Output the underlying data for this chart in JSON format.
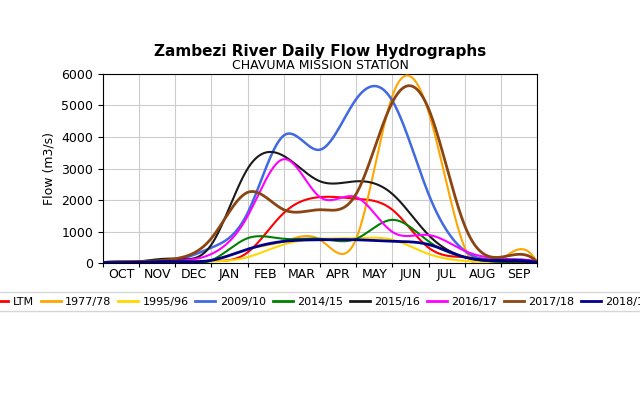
{
  "title": "Zambezi River Daily Flow Hydrographs",
  "subtitle": "CHAVUMA MISSION STATION",
  "ylabel": "Flow (m3/s)",
  "ylim": [
    0,
    6000
  ],
  "yticks": [
    0,
    1000,
    2000,
    3000,
    4000,
    5000,
    6000
  ],
  "months": [
    "OCT",
    "NOV",
    "DEC",
    "JAN",
    "FEB",
    "MAR",
    "APR",
    "MAY",
    "JUN",
    "JUL",
    "AUG",
    "SEP"
  ],
  "background_color": "#FFFFFF",
  "grid_color": "#CCCCCC",
  "title_fontsize": 11,
  "subtitle_fontsize": 9,
  "axis_fontsize": 9,
  "tick_fontsize": 9,
  "legend_fontsize": 8,
  "series": {
    "LTM": {
      "color": "#FF0000",
      "linewidth": 1.5,
      "x": [
        0,
        1,
        2,
        3,
        4,
        5,
        6,
        7,
        8,
        9,
        10,
        11,
        12
      ],
      "y": [
        30,
        30,
        40,
        80,
        350,
        1600,
        2100,
        2050,
        1700,
        500,
        200,
        80,
        30
      ]
    },
    "1977/78": {
      "color": "#FFA500",
      "linewidth": 1.5,
      "x": [
        0,
        1,
        2,
        3,
        4,
        5,
        6,
        7,
        8,
        9,
        10,
        11,
        12
      ],
      "y": [
        30,
        30,
        50,
        100,
        450,
        700,
        750,
        780,
        5300,
        4800,
        500,
        100,
        30
      ]
    },
    "1995/96": {
      "color": "#FFD700",
      "linewidth": 1.5,
      "x": [
        0,
        1,
        2,
        3,
        4,
        5,
        6,
        7,
        8,
        9,
        10,
        11,
        12
      ],
      "y": [
        20,
        20,
        30,
        60,
        200,
        600,
        780,
        800,
        750,
        300,
        80,
        30,
        10
      ]
    },
    "2009/10": {
      "color": "#4169E1",
      "linewidth": 1.8,
      "x": [
        0,
        1,
        2,
        3,
        4,
        5,
        6,
        7,
        8,
        9,
        10,
        11,
        12
      ],
      "y": [
        30,
        50,
        100,
        500,
        1600,
        4050,
        3600,
        5200,
        5150,
        2200,
        400,
        100,
        20
      ]
    },
    "2014/15": {
      "color": "#008000",
      "linewidth": 1.5,
      "x": [
        0,
        1,
        2,
        3,
        4,
        5,
        6,
        7,
        8,
        9,
        10,
        11,
        12
      ],
      "y": [
        20,
        30,
        50,
        100,
        800,
        780,
        780,
        780,
        1380,
        700,
        200,
        50,
        20
      ]
    },
    "2015/16": {
      "color": "#1a1a1a",
      "linewidth": 1.5,
      "x": [
        0,
        1,
        2,
        3,
        4,
        5,
        6,
        7,
        8,
        9,
        10,
        11,
        12
      ],
      "y": [
        30,
        60,
        150,
        600,
        3000,
        3400,
        2600,
        2600,
        2200,
        900,
        200,
        60,
        20
      ]
    },
    "2016/17": {
      "color": "#FF00FF",
      "linewidth": 1.5,
      "x": [
        0,
        1,
        2,
        3,
        4,
        5,
        6,
        7,
        8,
        9,
        10,
        11,
        12
      ],
      "y": [
        20,
        30,
        80,
        300,
        1500,
        3300,
        2100,
        2100,
        1000,
        900,
        400,
        150,
        80
      ]
    },
    "2017/18": {
      "color": "#8B4513",
      "linewidth": 2.0,
      "x": [
        0,
        1,
        2,
        3,
        4,
        5,
        6,
        7,
        8,
        9,
        10,
        11,
        12
      ],
      "y": [
        30,
        60,
        150,
        800,
        2250,
        1700,
        1700,
        2200,
        5100,
        4900,
        1200,
        200,
        50
      ]
    },
    "2018/19": {
      "color": "#00008B",
      "linewidth": 2.0,
      "x": [
        0,
        1,
        2,
        3,
        4,
        5,
        6,
        7,
        8,
        9,
        10,
        11,
        12
      ],
      "y": [
        30,
        40,
        60,
        100,
        450,
        700,
        750,
        750,
        700,
        600,
        200,
        100,
        30
      ]
    }
  }
}
